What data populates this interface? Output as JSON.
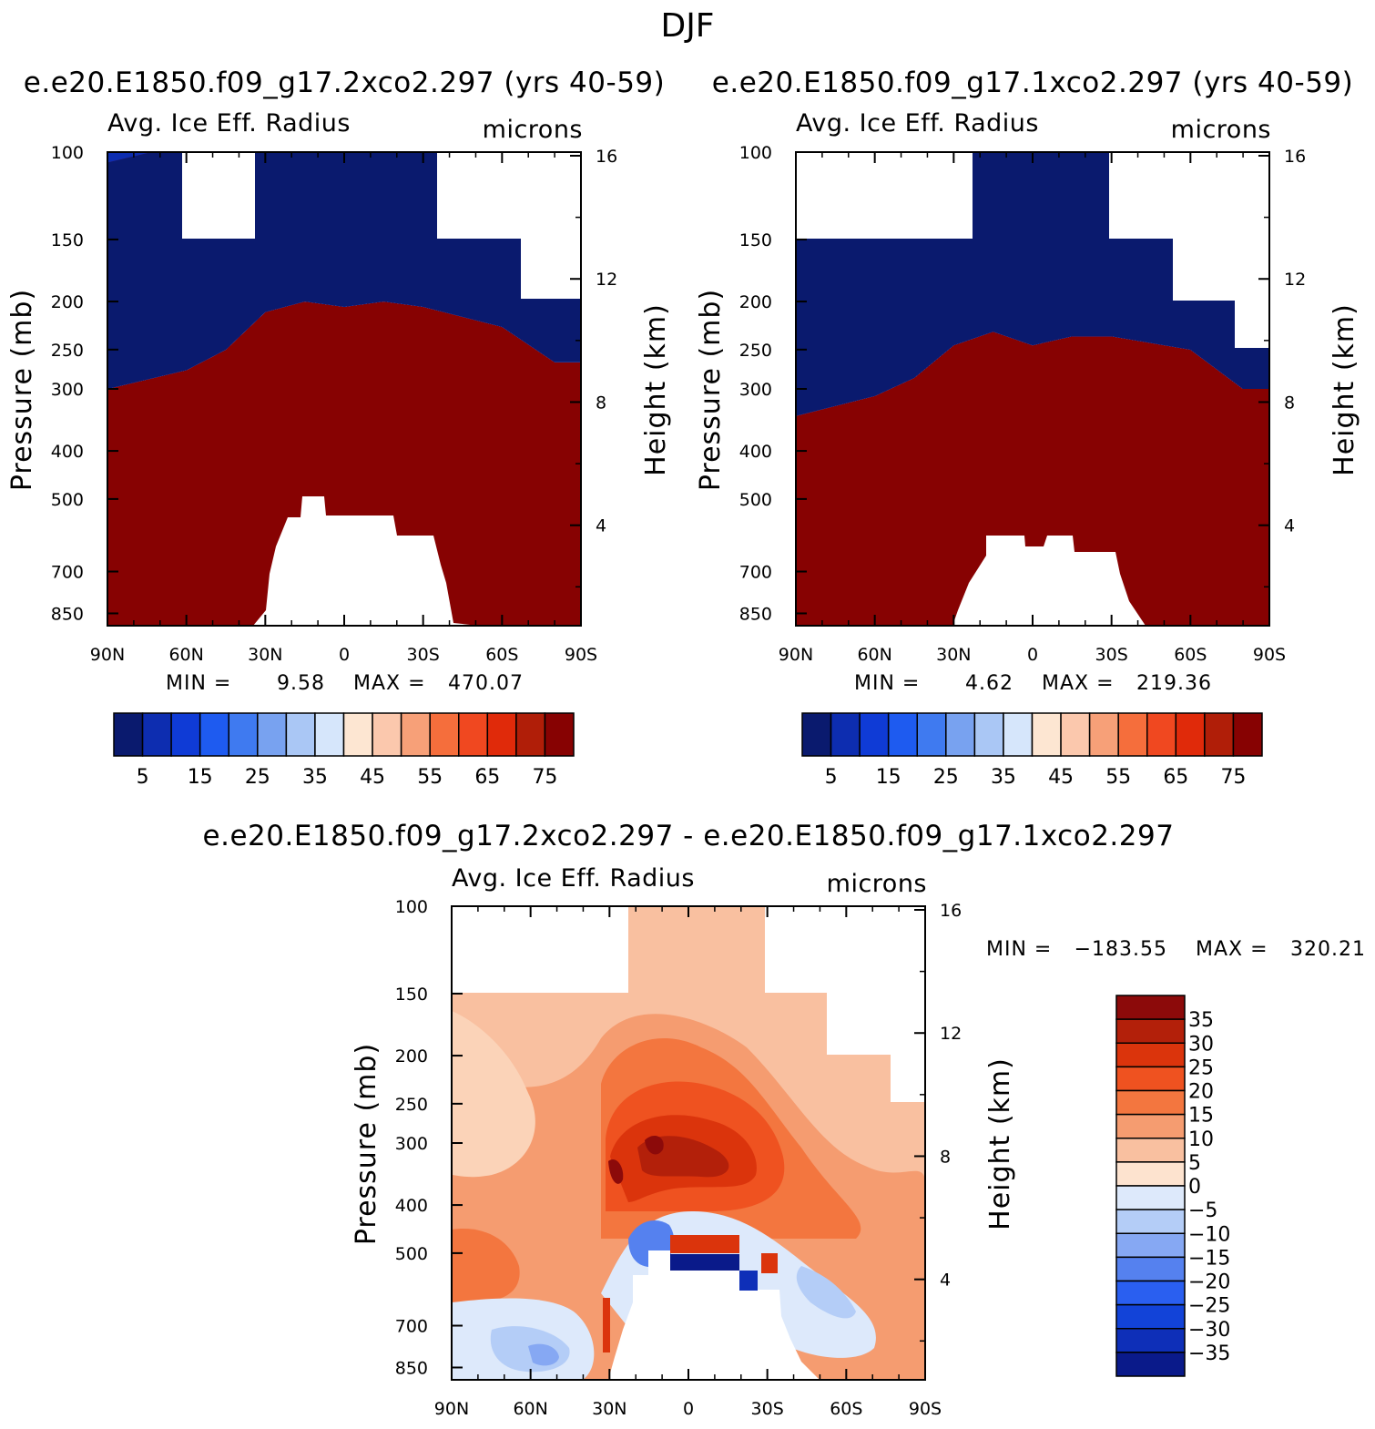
{
  "page_title": "DJF",
  "colors": {
    "abs_palette": [
      "#0a1a6e",
      "#0d2db0",
      "#0f3bd6",
      "#1e5bf0",
      "#3f7af0",
      "#78a2f0",
      "#aac7f5",
      "#d6e6fb",
      "#fde6d2",
      "#fbc8ad",
      "#f7a078",
      "#f56e3c",
      "#f04820",
      "#e02a0a",
      "#b01e08",
      "#870202"
    ],
    "diff_palette": [
      "#0a1a8a",
      "#0e2fb8",
      "#1243d8",
      "#2a5ff0",
      "#5581ef",
      "#86a8f3",
      "#b4cdf7",
      "#dde9fb",
      "#fde3cf",
      "#f9c0a0",
      "#f59c70",
      "#f3763f",
      "#ef5220",
      "#db340c",
      "#b3200a",
      "#8c0a0a"
    ]
  },
  "chart_data": [
    {
      "type": "heatmap",
      "panel": "left",
      "case_title": "e.e20.E1850.f09_g17.2xco2.297 (yrs 40-59)",
      "variable": "Avg. Ice Eff. Radius",
      "units": "microns",
      "xlabel": "",
      "ylabel": "Pressure (mb)",
      "y2label": "Height (km)",
      "x_ticks": [
        "90N",
        "60N",
        "30N",
        "0",
        "30S",
        "60S",
        "90S"
      ],
      "x_range": [
        90,
        -90
      ],
      "y_ticks": [
        "100",
        "150",
        "200",
        "250",
        "300",
        "400",
        "500",
        "700",
        "850"
      ],
      "y_range_mb": [
        100,
        900
      ],
      "y2_ticks": [
        "16",
        "12",
        "8",
        "4"
      ],
      "min_label": "MIN =",
      "min_value": "9.58",
      "max_label": "MAX =",
      "max_value": "470.07",
      "colorbar_ticks": [
        "5",
        "15",
        "25",
        "35",
        "45",
        "55",
        "65",
        "75"
      ],
      "colorbar_levels": [
        5,
        10,
        15,
        20,
        25,
        30,
        35,
        40,
        45,
        50,
        55,
        60,
        65,
        70,
        75
      ],
      "contour_top_mb": [
        {
          "lat": 90,
          "p": 300
        },
        {
          "lat": 60,
          "p": 275
        },
        {
          "lat": 45,
          "p": 250
        },
        {
          "lat": 30,
          "p": 210
        },
        {
          "lat": 15,
          "p": 200
        },
        {
          "lat": 0,
          "p": 205
        },
        {
          "lat": -15,
          "p": 200
        },
        {
          "lat": -30,
          "p": 205
        },
        {
          "lat": -60,
          "p": 225
        },
        {
          "lat": -80,
          "p": 265
        },
        {
          "lat": -90,
          "p": 265
        }
      ]
    },
    {
      "type": "heatmap",
      "panel": "right",
      "case_title": "e.e20.E1850.f09_g17.1xco2.297 (yrs 40-59)",
      "variable": "Avg. Ice Eff. Radius",
      "units": "microns",
      "xlabel": "",
      "ylabel": "Pressure (mb)",
      "y2label": "Height (km)",
      "x_ticks": [
        "90N",
        "60N",
        "30N",
        "0",
        "30S",
        "60S",
        "90S"
      ],
      "x_range": [
        90,
        -90
      ],
      "y_ticks": [
        "100",
        "150",
        "200",
        "250",
        "300",
        "400",
        "500",
        "700",
        "850"
      ],
      "y_range_mb": [
        100,
        900
      ],
      "y2_ticks": [
        "16",
        "12",
        "8",
        "4"
      ],
      "min_label": "MIN =",
      "min_value": "4.62",
      "max_label": "MAX =",
      "max_value": "219.36",
      "colorbar_ticks": [
        "5",
        "15",
        "25",
        "35",
        "45",
        "55",
        "65",
        "75"
      ],
      "colorbar_levels": [
        5,
        10,
        15,
        20,
        25,
        30,
        35,
        40,
        45,
        50,
        55,
        60,
        65,
        70,
        75
      ],
      "contour_top_mb": [
        {
          "lat": 90,
          "p": 340
        },
        {
          "lat": 60,
          "p": 310
        },
        {
          "lat": 45,
          "p": 285
        },
        {
          "lat": 30,
          "p": 245
        },
        {
          "lat": 15,
          "p": 230
        },
        {
          "lat": 0,
          "p": 245
        },
        {
          "lat": -15,
          "p": 235
        },
        {
          "lat": -30,
          "p": 235
        },
        {
          "lat": -60,
          "p": 250
        },
        {
          "lat": -80,
          "p": 300
        },
        {
          "lat": -90,
          "p": 300
        }
      ]
    },
    {
      "type": "heatmap",
      "panel": "difference",
      "case_title": "e.e20.E1850.f09_g17.2xco2.297 - e.e20.E1850.f09_g17.1xco2.297",
      "variable": "Avg. Ice Eff. Radius",
      "units": "microns",
      "xlabel": "",
      "ylabel": "Pressure (mb)",
      "y2label": "Height (km)",
      "x_ticks": [
        "90N",
        "60N",
        "30N",
        "0",
        "30S",
        "60S",
        "90S"
      ],
      "x_range": [
        90,
        -90
      ],
      "y_ticks": [
        "100",
        "150",
        "200",
        "250",
        "300",
        "400",
        "500",
        "700",
        "850"
      ],
      "y_range_mb": [
        100,
        900
      ],
      "y2_ticks": [
        "16",
        "12",
        "8",
        "4"
      ],
      "min_label": "MIN =",
      "min_value": "−183.55",
      "max_label": "MAX =",
      "max_value": "320.21",
      "colorbar_ticks": [
        "35",
        "30",
        "25",
        "20",
        "15",
        "10",
        "5",
        "0",
        "−5",
        "−10",
        "−15",
        "−20",
        "−25",
        "−30",
        "−35"
      ],
      "colorbar_levels": [
        35,
        30,
        25,
        20,
        15,
        10,
        5,
        0,
        -5,
        -10,
        -15,
        -20,
        -25,
        -30,
        -35
      ]
    }
  ]
}
